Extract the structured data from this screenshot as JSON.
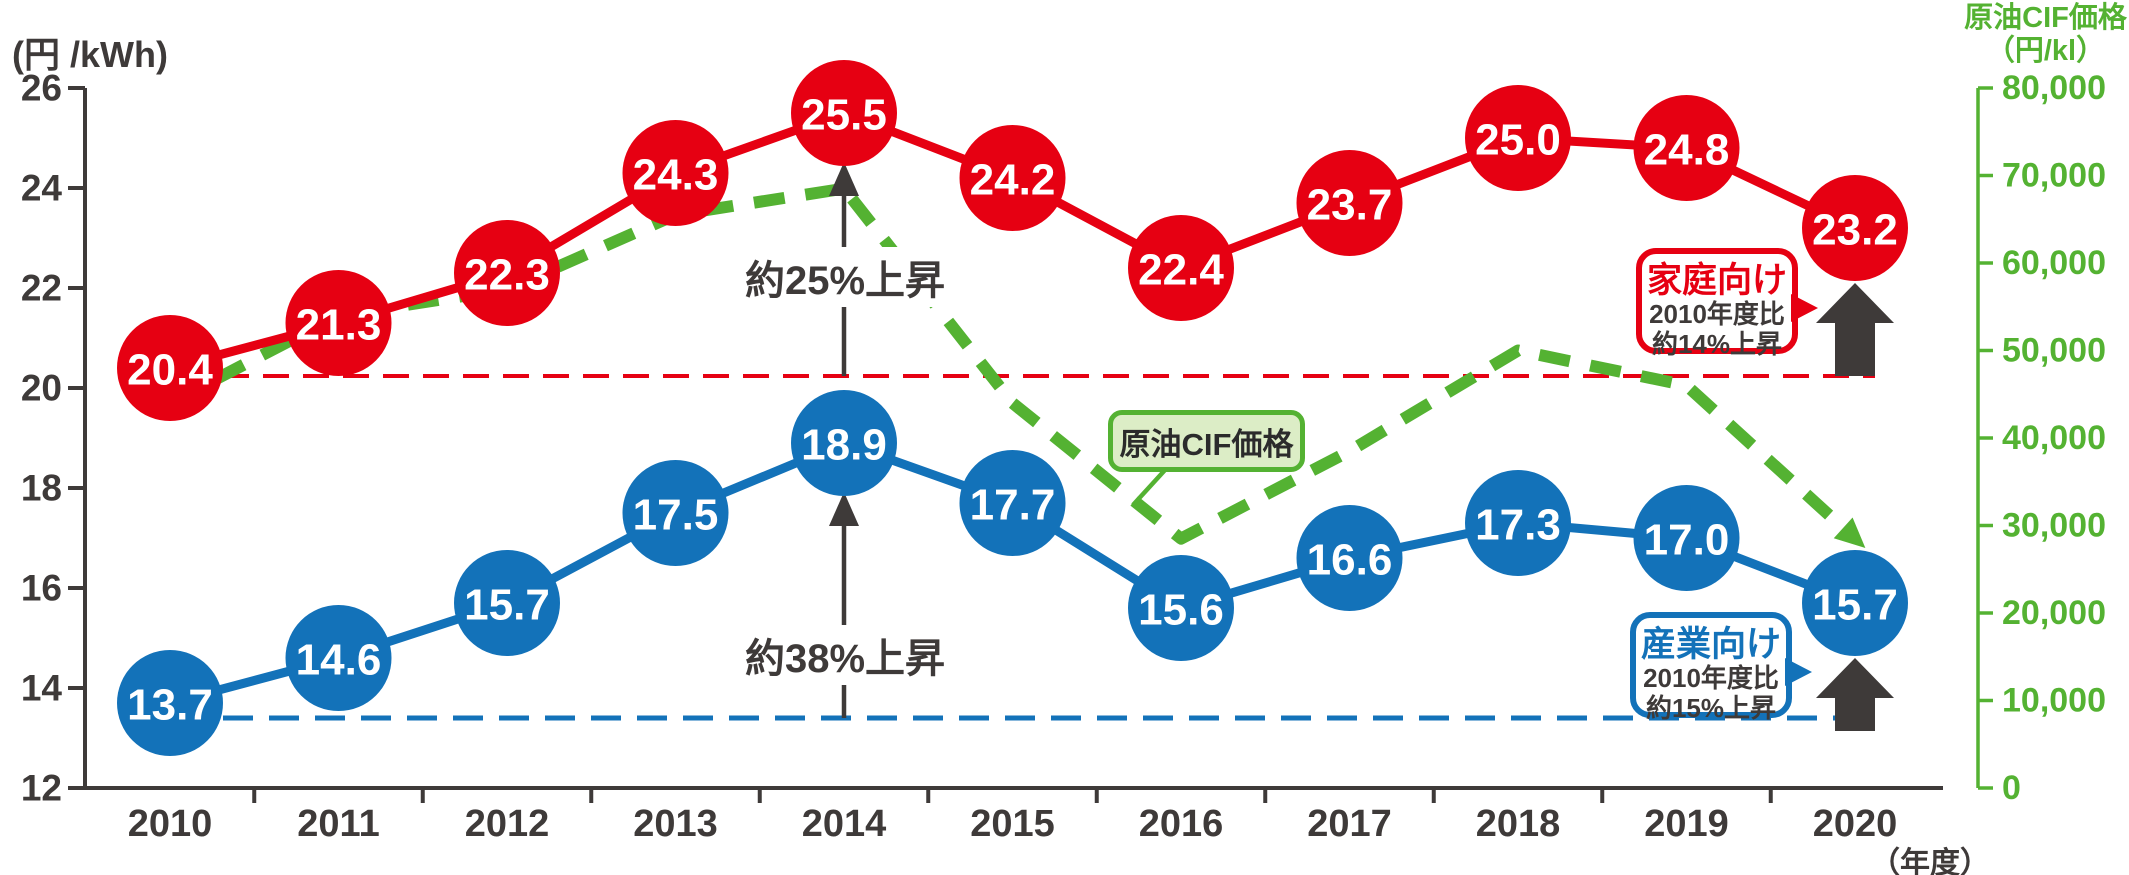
{
  "chart_data": {
    "type": "line",
    "title": "",
    "x_axis": {
      "years": [
        2010,
        2011,
        2012,
        2013,
        2014,
        2015,
        2016,
        2017,
        2018,
        2019,
        2020
      ],
      "unit_label": "（年度）"
    },
    "left_axis": {
      "unit_label": "(円 /kWh)",
      "min": 12,
      "max": 26,
      "step": 2,
      "ticks": [
        26,
        24,
        22,
        20,
        18,
        16,
        14,
        12
      ]
    },
    "right_axis": {
      "title": "原油CIF価格",
      "unit_label": "（円/kl）",
      "min": 0,
      "max": 80000,
      "step": 10000,
      "ticks": [
        "80,000",
        "70,000",
        "60,000",
        "50,000",
        "40,000",
        "30,000",
        "20,000",
        "10,000",
        "0"
      ],
      "color": "#54b232"
    },
    "series": [
      {
        "id": "household",
        "name": "家庭向け",
        "axis": "left",
        "style": "solid-circles",
        "color": "#e60012",
        "label_color": "#ffffff",
        "values": [
          20.4,
          21.3,
          22.3,
          24.3,
          25.5,
          24.2,
          22.4,
          23.7,
          25.0,
          24.8,
          23.2
        ]
      },
      {
        "id": "industry",
        "name": "産業向け",
        "axis": "left",
        "style": "solid-circles",
        "color": "#1372b9",
        "label_color": "#ffffff",
        "values": [
          13.7,
          14.6,
          15.7,
          17.5,
          18.9,
          17.7,
          15.6,
          16.6,
          17.3,
          17.0,
          15.7
        ]
      },
      {
        "id": "crude_oil_cif",
        "name": "原油CIF価格",
        "axis": "right",
        "style": "dashed",
        "color": "#54b232",
        "values_estimated_from_pixels": true,
        "values": [
          44000,
          54000,
          57000,
          65500,
          68500,
          44000,
          28500,
          38500,
          50000,
          46000,
          28500
        ]
      }
    ],
    "baselines": [
      {
        "id": "household-2010-level",
        "series": "家庭向け",
        "color": "#e60012",
        "style": "dashed"
      },
      {
        "id": "industry-2010-level",
        "series": "産業向け",
        "color": "#1372b9",
        "style": "dashed"
      }
    ],
    "annotations": {
      "rise_household": {
        "text": "約25%上昇",
        "year": 2014
      },
      "rise_industry": {
        "text": "約38%上昇",
        "year": 2014
      },
      "household_box": {
        "title": "家庭向け",
        "line1": "2010年度比",
        "line2": "約14%上昇"
      },
      "industry_box": {
        "title": "産業向け",
        "line1": "2010年度比",
        "line2": "約15%上昇"
      },
      "cif_label": {
        "text": "原油CIF価格"
      }
    },
    "colors": {
      "household_red": "#e60012",
      "industry_blue": "#1372b9",
      "cif_green": "#54b232",
      "cif_box_fill": "#dcedc6",
      "axis_dark": "#3e3a39",
      "arrow_dark": "#3e3a39"
    },
    "legend_position": "inline-callouts",
    "grid": false
  }
}
